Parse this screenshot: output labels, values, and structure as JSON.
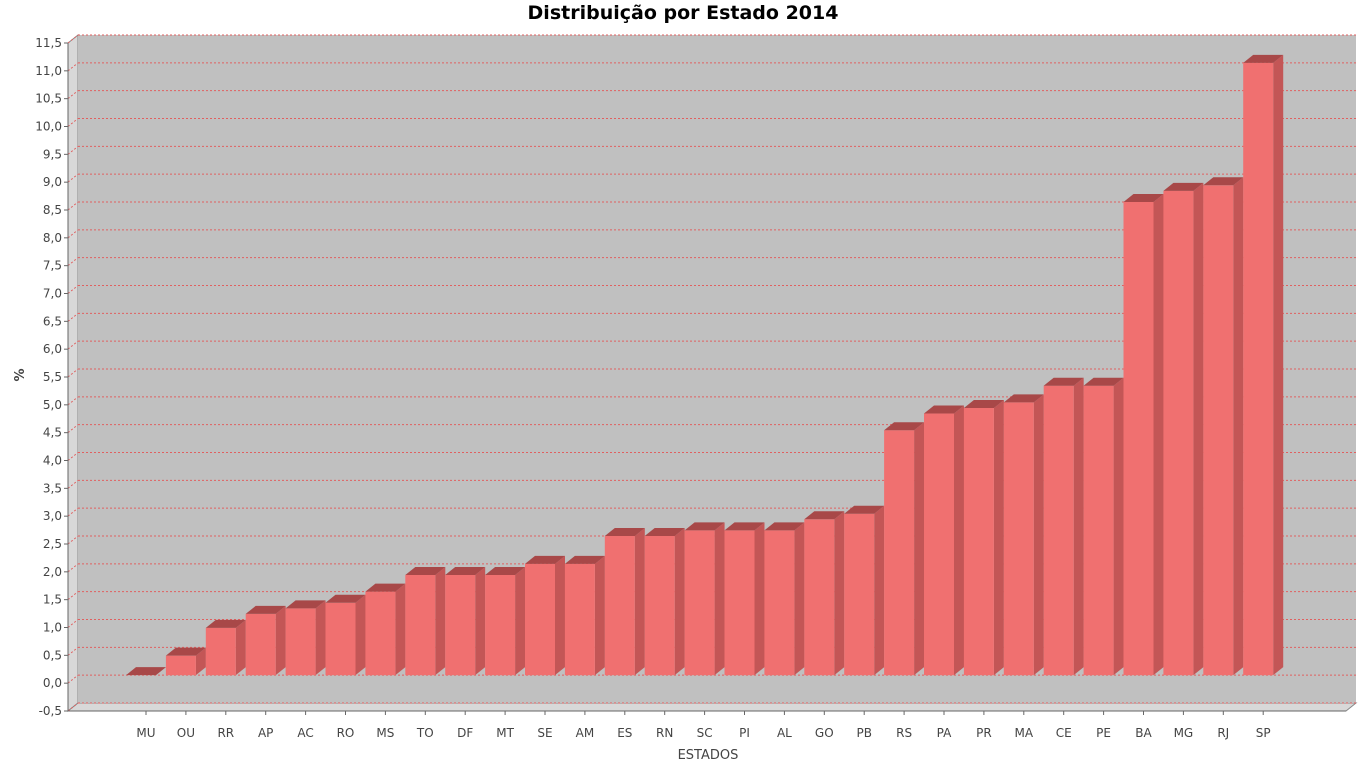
{
  "chart_data": {
    "type": "bar",
    "title": "Distribuição por Estado 2014",
    "xlabel": "ESTADOS",
    "ylabel": "%",
    "ylim": [
      -0.5,
      11.5
    ],
    "ytick_step": 0.5,
    "grid": true,
    "categories": [
      "MU",
      "OU",
      "RR",
      "AP",
      "AC",
      "RO",
      "MS",
      "TO",
      "DF",
      "MT",
      "SE",
      "AM",
      "ES",
      "RN",
      "SC",
      "PI",
      "AL",
      "GO",
      "PB",
      "RS",
      "PA",
      "PR",
      "MA",
      "CE",
      "PE",
      "BA",
      "MG",
      "RJ",
      "SP"
    ],
    "values": [
      0.0,
      0.35,
      0.85,
      1.1,
      1.2,
      1.3,
      1.5,
      1.8,
      1.8,
      1.8,
      2.0,
      2.0,
      2.5,
      2.5,
      2.6,
      2.6,
      2.6,
      2.8,
      2.9,
      4.4,
      4.7,
      4.8,
      4.9,
      5.2,
      5.2,
      8.5,
      8.7,
      8.8,
      11.0
    ],
    "colors": {
      "bar_front": "#f07070",
      "bar_side": "#c35656",
      "bar_top": "#a84848",
      "plot_bg": "#c0c0c0",
      "wall": "#d8d8d8",
      "floor": "#d8d8d8",
      "grid": "#e06060"
    }
  }
}
